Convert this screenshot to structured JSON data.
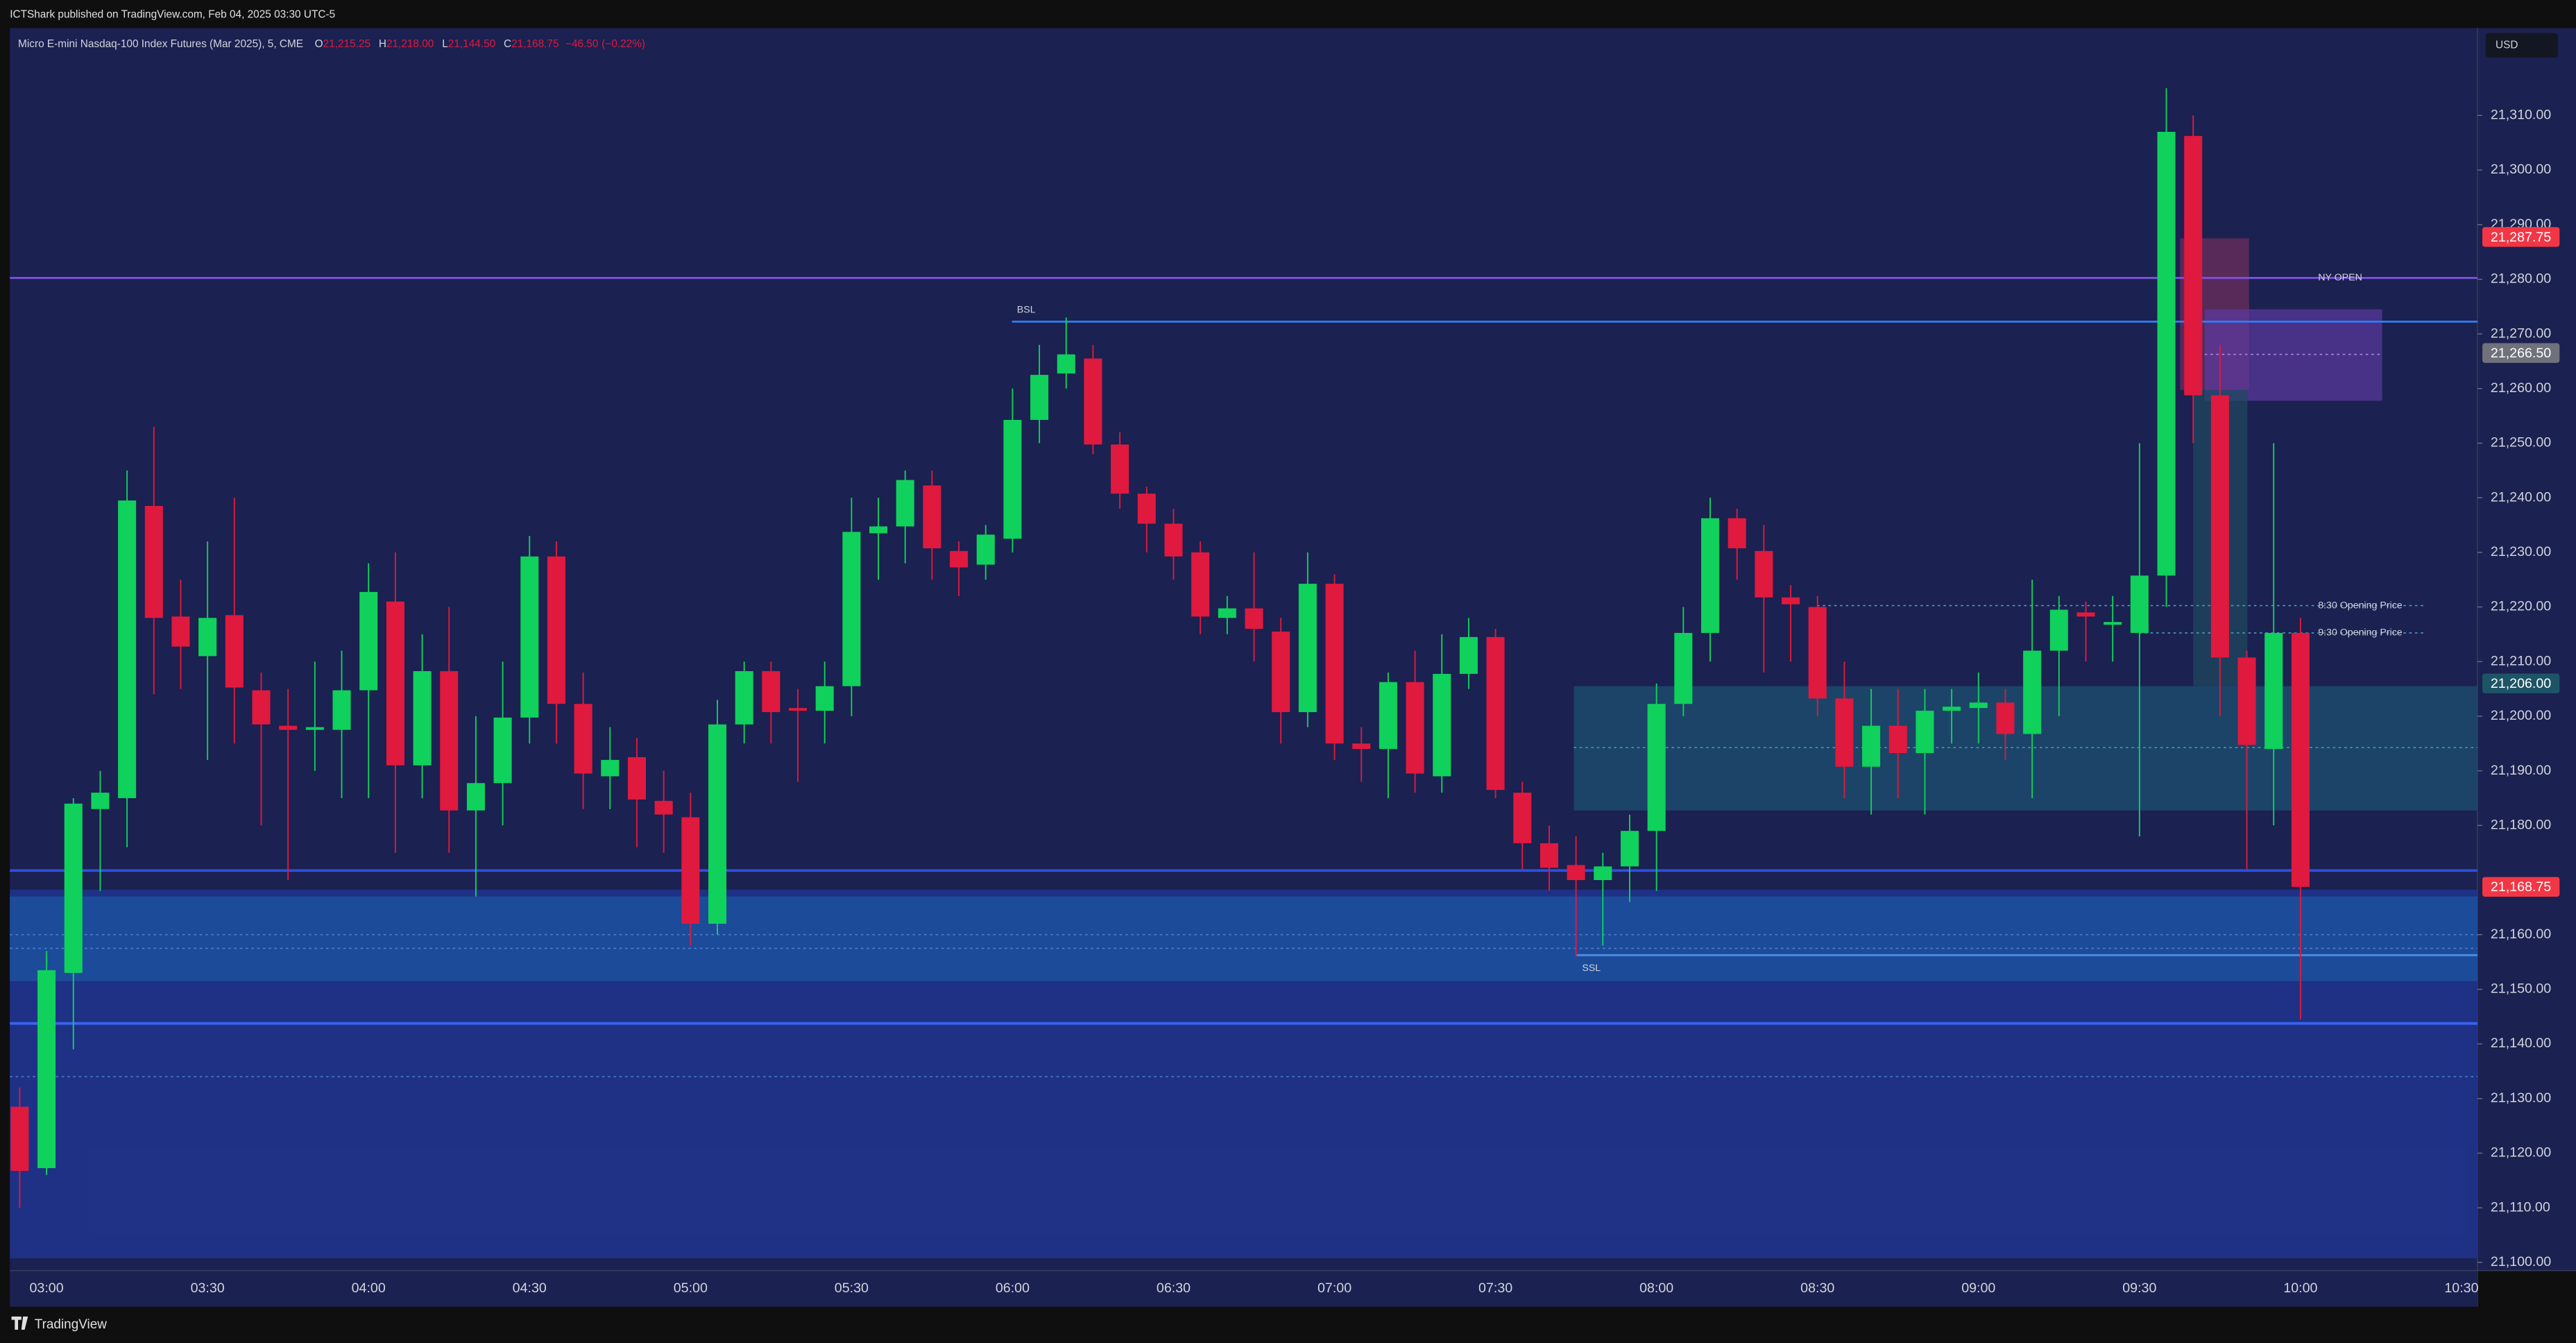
{
  "header": {
    "publisher": "ICTShark published on TradingView.com, Feb 04, 2025 03:30 UTC-5"
  },
  "footer": {
    "brand": "TradingView"
  },
  "chart_data": {
    "type": "candlestick",
    "title": "Micro E-mini Nasdaq-100 Index Futures (Mar 2025), 5, CME",
    "legend_ohlc": [
      {
        "name": "O",
        "value": 21215.25,
        "label": "21,215.25"
      },
      {
        "name": "H",
        "value": 21218,
        "label": "21,218.00"
      },
      {
        "name": "L",
        "value": 21144.5,
        "label": "21,144.50"
      },
      {
        "name": "C",
        "value": 21168.75,
        "label": "21,168.75"
      }
    ],
    "change": {
      "value": -46.5,
      "label": "−46.50"
    },
    "change_pct": {
      "value": -0.22,
      "label": "(−0.22%)"
    },
    "currency": "USD",
    "up_color": "#0fd15c",
    "down_color": "#e0193f",
    "categories": [
      null,
      "03:00",
      null,
      null,
      null,
      null,
      null,
      "03:30",
      null,
      null,
      null,
      null,
      null,
      "04:00",
      null,
      null,
      null,
      null,
      null,
      "04:30",
      null,
      null,
      null,
      null,
      null,
      "05:00",
      null,
      null,
      null,
      null,
      null,
      "05:30",
      null,
      null,
      null,
      null,
      null,
      "06:00",
      null,
      null,
      null,
      null,
      null,
      "06:30",
      null,
      null,
      null,
      null,
      null,
      "07:00",
      null,
      null,
      null,
      null,
      null,
      "07:30",
      null,
      null,
      null,
      null,
      null,
      "08:00",
      null,
      null,
      null,
      null,
      null,
      "08:30",
      null,
      null,
      null,
      null,
      null,
      "09:00",
      null,
      null,
      null,
      null,
      null,
      "09:30",
      null,
      null,
      null,
      null,
      null,
      "10:00",
      null,
      null,
      null,
      null,
      null,
      "10:30"
    ],
    "open": [
      21128.5,
      21117.25,
      21153,
      21183,
      21185,
      21238.5,
      21218.25,
      21211,
      21218.5,
      21204.75,
      21198.25,
      21197.5,
      21197.5,
      21204.75,
      21221,
      21191,
      21208.25,
      21182.75,
      21187.75,
      21199.75,
      21229.25,
      21202.25,
      21189,
      21192.5,
      21184.5,
      21181.5,
      21162,
      21198.5,
      21208.25,
      21201.5,
      21201,
      21205.5,
      21233.5,
      21234.75,
      21242.25,
      21230.25,
      21227.75,
      21232.5,
      21254.25,
      21262.75,
      21265.5,
      21249.75,
      21240.75,
      21235.25,
      21230,
      21218,
      21219.75,
      21215.5,
      21200.75,
      21224.25,
      21195,
      21194,
      21206.25,
      21189,
      21207.75,
      21214.5,
      21186,
      21176.75,
      21172.75,
      21170,
      21172.5,
      21179,
      21202.25,
      21215.25,
      21236.25,
      21230.25,
      21221.75,
      21220,
      21203.25,
      21190.75,
      21198.25,
      21193.25,
      21201,
      21201.5,
      21202.5,
      21196.75,
      21212,
      21219,
      21216.75,
      21215.25,
      21225.75,
      21306.25,
      21258.75,
      21210.75,
      21194,
      21215.25,
      null,
      null,
      null,
      null,
      null,
      null
    ],
    "high": [
      21132,
      21157,
      21185,
      21190,
      21245,
      21253,
      21225,
      21232,
      21240,
      21208,
      21205,
      21210,
      21212,
      21228,
      21230,
      21215,
      21220,
      21200,
      21210,
      21233,
      21232,
      21208,
      21198,
      21196,
      21190,
      21186,
      21203,
      21210,
      21210,
      21205,
      21210,
      21240,
      21240,
      21245,
      21245,
      21232,
      21235,
      21260,
      21268,
      21273,
      21268,
      21252,
      21242,
      21238,
      21232,
      21222,
      21230,
      21218,
      21230,
      21226,
      21198,
      21208,
      21212,
      21215,
      21218,
      21216,
      21188,
      21180,
      21178,
      21175,
      21182,
      21206,
      21220,
      21240,
      21238,
      21235,
      21224,
      21222,
      21210,
      21205,
      21205,
      21205,
      21205,
      21208,
      21205,
      21225,
      21222,
      21221,
      21222,
      21250,
      21315,
      21310,
      21268,
      21212,
      21250,
      21218,
      null,
      null,
      null,
      null,
      null,
      null
    ],
    "low": [
      21110,
      21116,
      21139,
      21168,
      21176,
      21204,
      21205,
      21192,
      21195,
      21180,
      21170,
      21190,
      21185,
      21185,
      21175,
      21185,
      21175,
      21167,
      21180,
      21195,
      21195,
      21183,
      21183,
      21176,
      21175,
      21158,
      21160,
      21195,
      21195,
      21188,
      21195,
      21200,
      21225,
      21228,
      21225,
      21222,
      21225,
      21230,
      21250,
      21260,
      21248,
      21238,
      21230,
      21225,
      21215,
      21215,
      21210,
      21195,
      21198,
      21192,
      21188,
      21185,
      21186,
      21186,
      21205,
      21185,
      21172,
      21168,
      21156,
      21158,
      21166,
      21168,
      21200,
      21210,
      21225,
      21208,
      21210,
      21200,
      21185,
      21182,
      21185,
      21182,
      21195,
      21195,
      21192,
      21185,
      21200,
      21210,
      21210,
      21178,
      21220,
      21250,
      21200,
      21172,
      21180,
      21144.5,
      null,
      null,
      null,
      null,
      null,
      null
    ],
    "close": [
      21116.75,
      21153.5,
      21184,
      21186,
      21239.5,
      21218,
      21212.75,
      21218,
      21205.25,
      21198.5,
      21197.5,
      21198,
      21204.75,
      21222.75,
      21191,
      21208.25,
      21182.75,
      21187.75,
      21199.75,
      21229.25,
      21202.25,
      21189.5,
      21192,
      21184.75,
      21182,
      21162,
      21198.5,
      21208.25,
      21200.75,
      21201,
      21205.5,
      21233.75,
      21234.75,
      21243.25,
      21230.75,
      21227.25,
      21233.25,
      21254.25,
      21262.5,
      21266.25,
      21249.75,
      21240.75,
      21235.25,
      21229.25,
      21218.25,
      21219.75,
      21216,
      21200.75,
      21224.25,
      21195,
      21194,
      21206.25,
      21189.5,
      21207.75,
      21214.5,
      21186.5,
      21176.75,
      21172.25,
      21170,
      21172.5,
      21179,
      21202.25,
      21215.25,
      21236.25,
      21230.75,
      21221.75,
      21220.5,
      21203.25,
      21190.75,
      21198.25,
      21193.25,
      21201,
      21201.75,
      21202.5,
      21196.75,
      21212,
      21219.5,
      21218.25,
      21217.25,
      21225.75,
      21307,
      21258.75,
      21210.75,
      21194.75,
      21215.25,
      21168.75,
      null,
      null,
      null,
      null,
      null,
      null
    ],
    "ylim": [
      21098.5,
      21326
    ],
    "yticks": [
      {
        "value": 21100,
        "label": "21,100.00"
      },
      {
        "value": 21110,
        "label": "21,110.00"
      },
      {
        "value": 21120,
        "label": "21,120.00"
      },
      {
        "value": 21130,
        "label": "21,130.00"
      },
      {
        "value": 21140,
        "label": "21,140.00"
      },
      {
        "value": 21150,
        "label": "21,150.00"
      },
      {
        "value": 21160,
        "label": "21,160.00"
      },
      {
        "value": 21180,
        "label": "21,180.00"
      },
      {
        "value": 21190,
        "label": "21,190.00"
      },
      {
        "value": 21200,
        "label": "21,200.00"
      },
      {
        "value": 21210,
        "label": "21,210.00"
      },
      {
        "value": 21220,
        "label": "21,220.00"
      },
      {
        "value": 21230,
        "label": "21,230.00"
      },
      {
        "value": 21240,
        "label": "21,240.00"
      },
      {
        "value": 21250,
        "label": "21,250.00"
      },
      {
        "value": 21260,
        "label": "21,260.00"
      },
      {
        "value": 21270,
        "label": "21,270.00"
      },
      {
        "value": 21280,
        "label": "21,280.00"
      },
      {
        "value": 21290,
        "label": "21,290.00"
      },
      {
        "value": 21300,
        "label": "21,300.00"
      },
      {
        "value": 21310,
        "label": "21,310.00"
      }
    ],
    "price_tags": [
      {
        "value": 21287.75,
        "label": "21,287.75",
        "color": "#f23645"
      },
      {
        "value": 21266.5,
        "label": "21,266.50",
        "color": "#6f717b"
      },
      {
        "value": 21206,
        "label": "21,206.00",
        "color": "#1d5566"
      },
      {
        "value": 21168.75,
        "label": "21,168.75",
        "color": "#f23645"
      }
    ],
    "zones": [
      {
        "low": 21100.75,
        "high": 21168.25,
        "color": "#1f3388"
      },
      {
        "low": 21151.5,
        "high": 21167,
        "color": "#1c4f9c"
      },
      {
        "low": 21182.75,
        "high": 21205.5,
        "color": "#1c4a6c"
      },
      {
        "low": 21259.75,
        "high": 21287.5,
        "color": "#6e2e5e"
      },
      {
        "low": 21257.75,
        "high": 21274.5,
        "color": "#5b3aa0"
      },
      {
        "low": 21205.5,
        "high": 21259.75,
        "color": "#1e4a5f"
      }
    ],
    "levels": [
      {
        "value": 21280.25,
        "color": "#7e4fe0",
        "style": "solid",
        "label": "NY OPEN"
      },
      {
        "value": 21272.25,
        "color": "#2f7bf0",
        "style": "solid",
        "label": "BSL"
      },
      {
        "value": 21171.75,
        "color": "#2f4fe0",
        "style": "solid"
      },
      {
        "value": 21143.75,
        "color": "#3a62f0",
        "style": "solid"
      },
      {
        "value": 21156.25,
        "color": "#4a90e2",
        "style": "solid",
        "label": "SSL"
      },
      {
        "value": 21220.25,
        "color": "#4aa0c0",
        "style": "dotted",
        "label": "8:30 Opening Price"
      },
      {
        "value": 21215.25,
        "color": "#4aa0c0",
        "style": "dotted",
        "label": "9:30 Opening Price"
      },
      {
        "value": 21194.25,
        "color": "#3aa0b0",
        "style": "dotted"
      },
      {
        "value": 21266.25,
        "color": "#b08ad8",
        "style": "dotted"
      },
      {
        "value": 21160,
        "color": "#4a80d0",
        "style": "dotted"
      },
      {
        "value": 21157.5,
        "color": "#4a80d0",
        "style": "dotted"
      },
      {
        "value": 21134,
        "color": "#4a80d0",
        "style": "dotted"
      }
    ]
  }
}
